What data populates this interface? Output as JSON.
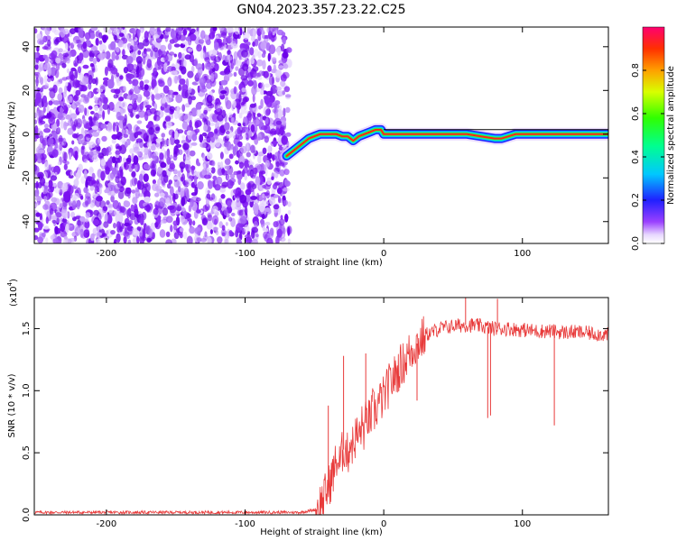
{
  "title": "GN04.2023.357.23.22.C25",
  "chart_data": [
    {
      "type": "heatmap",
      "xlabel": "Height of straight line (km)",
      "ylabel": "Frequency (Hz)",
      "xlim": [
        -252,
        162
      ],
      "ylim": [
        -50,
        49
      ],
      "xticks": [
        -200,
        -100,
        0,
        100
      ],
      "yticks": [
        -40,
        -20,
        0,
        20,
        40
      ],
      "noise_region_x": [
        -252,
        -68
      ],
      "signal_track": {
        "x": [
          -70,
          -66,
          -62,
          -58,
          -54,
          -50,
          -46,
          -42,
          -38,
          -34,
          -30,
          -26,
          -22,
          -18,
          -14,
          -10,
          -6,
          -2,
          0,
          20,
          40,
          60,
          70,
          80,
          85,
          90,
          95,
          100,
          120,
          140,
          162
        ],
        "y": [
          -10,
          -8,
          -6,
          -4,
          -2,
          -1,
          0,
          0,
          0,
          0,
          -1,
          -1,
          -3,
          -1,
          0,
          1,
          2,
          2,
          0,
          0,
          0,
          0,
          -1,
          -2,
          -2,
          -1,
          0,
          0,
          0,
          0,
          0
        ]
      },
      "colorbar": {
        "label": "Normalized spectral amplitude",
        "range": [
          0,
          1
        ],
        "ticks": [
          "0.0",
          "0.2",
          "0.4",
          "0.6",
          "0.8"
        ]
      },
      "grid": false
    },
    {
      "type": "line",
      "xlabel": "Height of straight line (km)",
      "ylabel": "SNR (10 * v/v)",
      "y_multiplier": "(x10",
      "y_multiplier_exp": "4",
      "y_multiplier_close": ")",
      "xlim": [
        -252,
        162
      ],
      "ylim": [
        0,
        1.75
      ],
      "xticks": [
        -200,
        -100,
        0,
        100
      ],
      "yticks": [
        "0.0",
        "0.5",
        "1.0",
        "1.5"
      ],
      "series": [
        {
          "color": "#e83a3a",
          "x": [
            -252,
            -200,
            -150,
            -100,
            -60,
            -50,
            -45,
            -40,
            -36,
            -34,
            -32,
            -30,
            -28,
            -26,
            -24,
            -22,
            -20,
            -18,
            -16,
            -14,
            -12,
            -10,
            -8,
            -6,
            -4,
            -2,
            0,
            2,
            4,
            6,
            8,
            10,
            12,
            14,
            16,
            18,
            20,
            22,
            24,
            26,
            28,
            30,
            35,
            40,
            50,
            60,
            70,
            80,
            90,
            100,
            110,
            120,
            130,
            140,
            150,
            162
          ],
          "y": [
            0.02,
            0.02,
            0.02,
            0.02,
            0.02,
            0.04,
            0.1,
            0.22,
            0.35,
            0.45,
            0.4,
            0.5,
            0.55,
            0.48,
            0.6,
            0.55,
            0.65,
            0.62,
            0.72,
            0.68,
            0.8,
            0.75,
            0.85,
            0.82,
            0.9,
            0.92,
            0.95,
            1.0,
            1.05,
            1.08,
            1.12,
            1.15,
            1.2,
            1.22,
            1.25,
            1.3,
            1.32,
            1.36,
            1.38,
            1.4,
            1.42,
            1.45,
            1.47,
            1.5,
            1.52,
            1.53,
            1.52,
            1.5,
            1.5,
            1.49,
            1.48,
            1.48,
            1.47,
            1.47,
            1.46,
            1.45
          ]
        }
      ],
      "spikes": [
        {
          "x": -40,
          "y": 0.88
        },
        {
          "x": -29,
          "y": 1.28
        },
        {
          "x": -13,
          "y": 1.3
        },
        {
          "x": 59,
          "y": 1.78
        },
        {
          "x": 82,
          "y": 1.74
        },
        {
          "x": 75,
          "y": 0.78
        },
        {
          "x": 77,
          "y": 0.8
        },
        {
          "x": 123,
          "y": 0.72
        },
        {
          "x": 24,
          "y": 0.92
        }
      ],
      "grid": false
    }
  ]
}
